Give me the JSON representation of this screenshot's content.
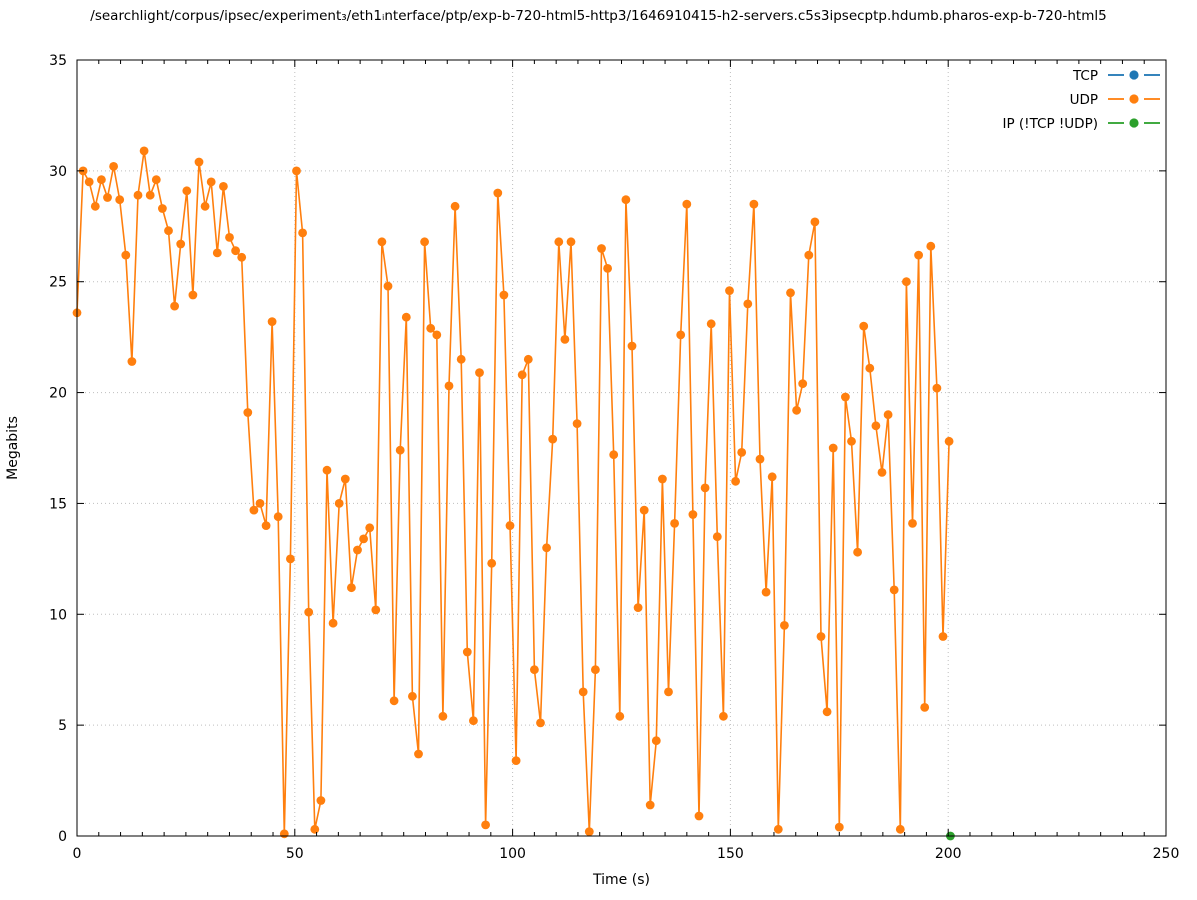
{
  "chart_data": {
    "type": "line",
    "title": "/searchlight/corpus/ipsec/experiment₃/eth1ᵢnterface/ptp/exp-b-720-html5-http3/1646910415-h2-servers.c5s3ipsecptp.hdumb.pharos-exp-b-720-html5",
    "xlabel": "Time (s)",
    "ylabel": "Megabits",
    "xlim": [
      0,
      250
    ],
    "ylim": [
      0,
      35
    ],
    "xticks": [
      0,
      50,
      100,
      150,
      200,
      250
    ],
    "yticks": [
      0,
      5,
      10,
      15,
      20,
      25,
      30,
      35
    ],
    "minor_xtick_step": 5,
    "grid": true,
    "legend_position": "top-right",
    "marker": "filled-circle",
    "series": [
      {
        "name": "TCP",
        "color": "#1f77b4",
        "points": []
      },
      {
        "name": "UDP",
        "color": "#ff7f0e",
        "x_start": 0,
        "x_step": 1.4,
        "values": [
          23.6,
          30.0,
          29.5,
          28.4,
          29.6,
          28.8,
          30.2,
          28.7,
          26.2,
          21.4,
          28.9,
          30.9,
          28.9,
          29.6,
          28.3,
          27.3,
          23.9,
          26.7,
          29.1,
          24.4,
          30.4,
          28.4,
          29.5,
          26.3,
          29.3,
          27.0,
          26.4,
          26.1,
          19.1,
          14.7,
          15.0,
          14.0,
          23.2,
          14.4,
          0.1,
          12.5,
          30.0,
          27.2,
          10.1,
          0.3,
          1.6,
          16.5,
          9.6,
          15.0,
          16.1,
          11.2,
          12.9,
          13.4,
          13.9,
          10.2,
          26.8,
          24.8,
          6.1,
          17.4,
          23.4,
          6.3,
          3.7,
          26.8,
          22.9,
          22.6,
          5.4,
          20.3,
          28.4,
          21.5,
          8.3,
          5.2,
          20.9,
          0.5,
          12.3,
          29.0,
          24.4,
          14.0,
          3.4,
          20.8,
          21.5,
          7.5,
          5.1,
          13.0,
          17.9,
          26.8,
          22.4,
          26.8,
          18.6,
          6.5,
          0.2,
          7.5,
          26.5,
          25.6,
          17.2,
          5.4,
          28.7,
          22.1,
          10.3,
          14.7,
          1.4,
          4.3,
          16.1,
          6.5,
          14.1,
          22.6,
          28.5,
          14.5,
          0.9,
          15.7,
          23.1,
          13.5,
          5.4,
          24.6,
          16.0,
          17.3,
          24.0,
          28.5,
          17.0,
          11.0,
          16.2,
          0.3,
          9.5,
          24.5,
          19.2,
          20.4,
          26.2,
          27.7,
          9.0,
          5.6,
          17.5,
          0.4,
          19.8,
          17.8,
          12.8,
          23.0,
          21.1,
          18.5,
          16.4,
          19.0,
          11.1,
          0.3,
          25.0,
          14.1,
          26.2,
          5.8,
          26.6,
          20.2,
          9.0,
          17.8
        ]
      },
      {
        "name": "IP (!TCP  !UDP)",
        "color": "#2ca02c",
        "points": [
          [
            200.5,
            0.0
          ]
        ]
      }
    ]
  }
}
